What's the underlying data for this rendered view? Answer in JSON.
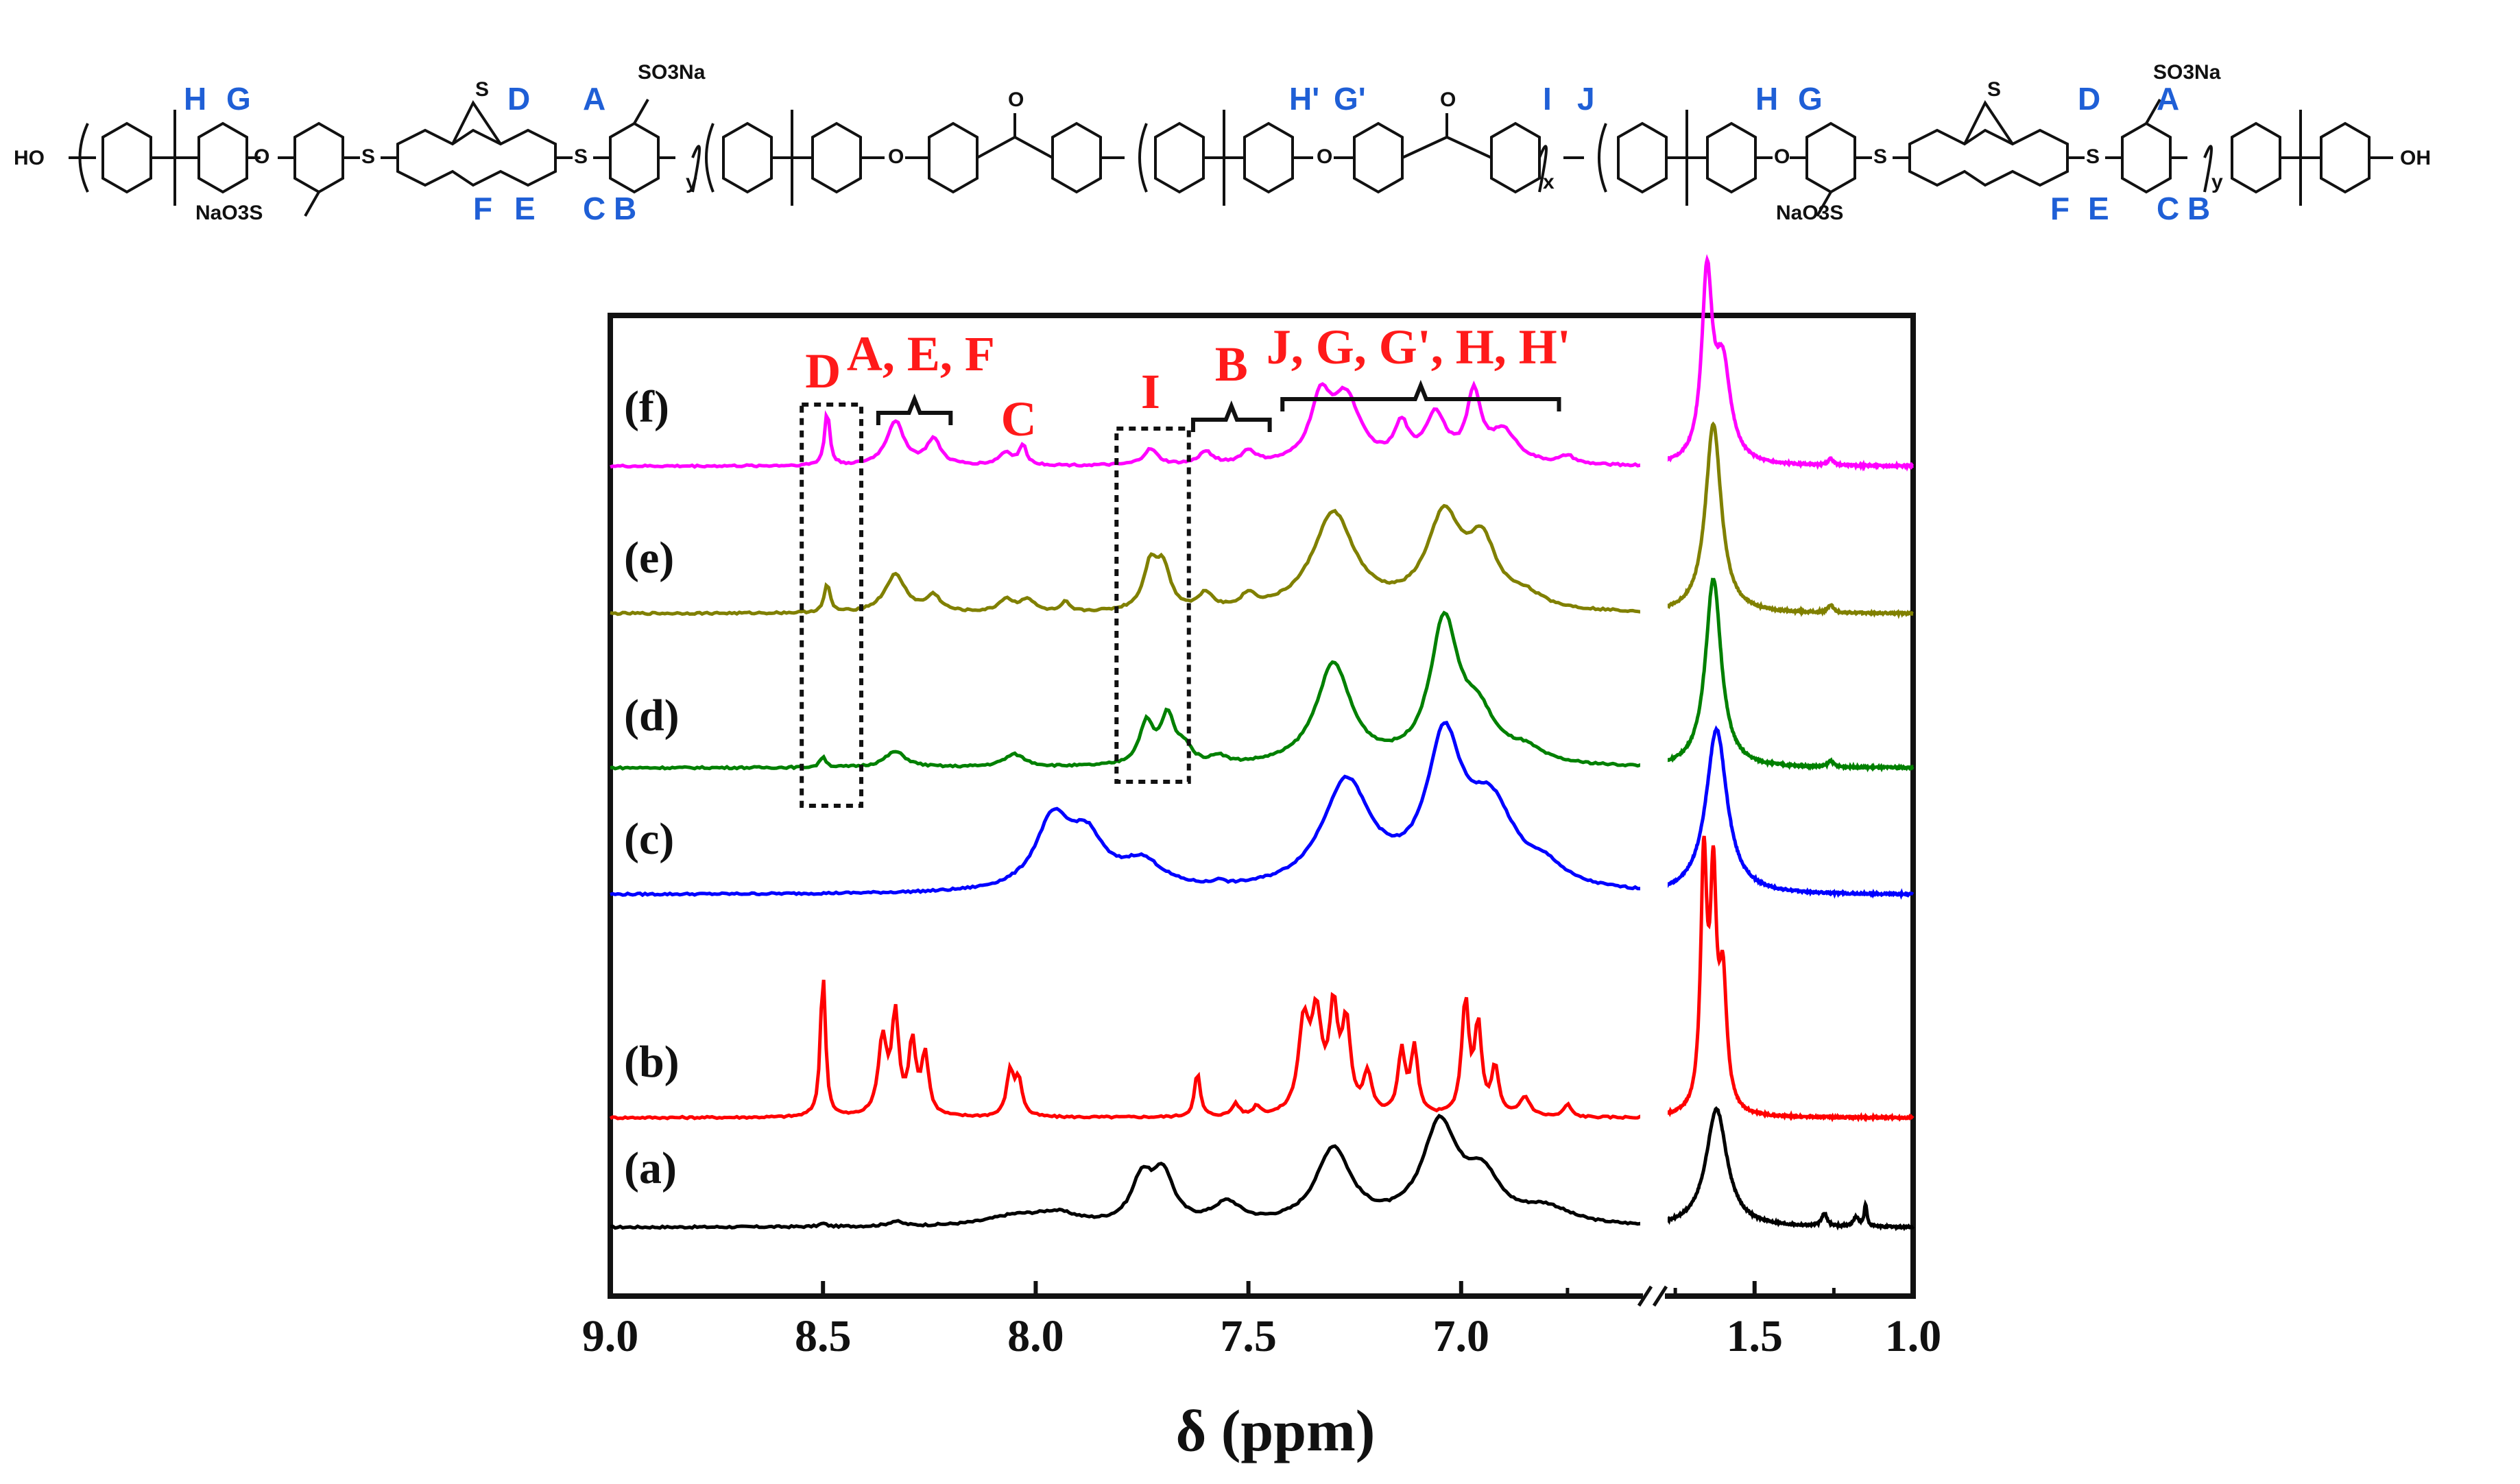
{
  "structure": {
    "end_left": "HO",
    "end_right": "OH",
    "sulfonate": "SO3Na",
    "sulfonate_left": "NaO3S",
    "repeat_y": "y",
    "repeat_x": "x",
    "labels": {
      "H": "H",
      "G": "G",
      "D": "D",
      "A": "A",
      "F": "F",
      "E": "E",
      "C": "C",
      "B": "B",
      "Hp": "H'",
      "Gp": "G'",
      "I": "I",
      "J": "J"
    }
  },
  "colors": {
    "a": "#000000",
    "b": "#ff0000",
    "c": "#0000ff",
    "d": "#008000",
    "e": "#808000",
    "f": "#ff00ff",
    "annotation": "#ff1a1a",
    "structure_label": "#1f5fd6"
  },
  "chart_data": {
    "type": "line",
    "xlabel": "δ (ppm)",
    "x_axis": {
      "reversed": true,
      "broken": true,
      "left_segment_range": [
        9.0,
        6.55
      ],
      "right_segment_range": [
        1.8,
        1.0
      ],
      "tick_labels": [
        "9.0",
        "8.5",
        "8.0",
        "7.5",
        "7.0",
        "1.5",
        "1.0"
      ]
    },
    "series": [
      {
        "name": "(a)",
        "color": "#000000",
        "peaks": [
          [
            8.5,
            0.02,
            0.01
          ],
          [
            8.33,
            0.03,
            0.02
          ],
          [
            8.05,
            0.06,
            0.08
          ],
          [
            7.95,
            0.07,
            0.06
          ],
          [
            7.75,
            0.28,
            0.03
          ],
          [
            7.7,
            0.3,
            0.03
          ],
          [
            7.55,
            0.13,
            0.04
          ],
          [
            7.3,
            0.48,
            0.05
          ],
          [
            7.05,
            0.62,
            0.05
          ],
          [
            6.95,
            0.28,
            0.05
          ],
          [
            6.8,
            0.1,
            0.07
          ]
        ],
        "aliphatic": [
          [
            1.62,
            0.75,
            0.04
          ],
          [
            1.28,
            0.08,
            0.01
          ],
          [
            1.18,
            0.06,
            0.01
          ],
          [
            1.15,
            0.14,
            0.005
          ]
        ]
      },
      {
        "name": "(b)",
        "color": "#ff0000",
        "peaks": [
          [
            8.5,
            0.92,
            0.007
          ],
          [
            8.36,
            0.48,
            0.012
          ],
          [
            8.33,
            0.62,
            0.01
          ],
          [
            8.29,
            0.45,
            0.01
          ],
          [
            8.26,
            0.38,
            0.01
          ],
          [
            8.06,
            0.28,
            0.01
          ],
          [
            8.04,
            0.22,
            0.01
          ],
          [
            7.62,
            0.28,
            0.008
          ],
          [
            7.53,
            0.08,
            0.01
          ],
          [
            7.48,
            0.06,
            0.01
          ],
          [
            7.37,
            0.55,
            0.015
          ],
          [
            7.34,
            0.58,
            0.015
          ],
          [
            7.3,
            0.62,
            0.012
          ],
          [
            7.27,
            0.55,
            0.012
          ],
          [
            7.22,
            0.25,
            0.012
          ],
          [
            7.14,
            0.4,
            0.01
          ],
          [
            7.11,
            0.42,
            0.01
          ],
          [
            6.99,
            0.72,
            0.01
          ],
          [
            6.96,
            0.55,
            0.01
          ],
          [
            6.92,
            0.3,
            0.01
          ],
          [
            6.85,
            0.12,
            0.015
          ],
          [
            6.75,
            0.08,
            0.01
          ]
        ],
        "aliphatic": [
          [
            1.66,
            1.55,
            0.012
          ],
          [
            1.63,
            1.35,
            0.012
          ],
          [
            1.6,
            0.8,
            0.015
          ]
        ]
      },
      {
        "name": "(c)",
        "color": "#0000ff",
        "peaks": [
          [
            7.96,
            0.43,
            0.05
          ],
          [
            7.88,
            0.3,
            0.05
          ],
          [
            7.75,
            0.17,
            0.06
          ],
          [
            7.57,
            0.03,
            0.01
          ],
          [
            7.27,
            0.68,
            0.07
          ],
          [
            7.04,
            0.88,
            0.05
          ],
          [
            6.93,
            0.5,
            0.07
          ],
          [
            6.8,
            0.1,
            0.05
          ]
        ],
        "aliphatic": [
          [
            1.62,
            1.05,
            0.04
          ]
        ]
      },
      {
        "name": "(d)",
        "color": "#008000",
        "peaks": [
          [
            8.5,
            0.07,
            0.008
          ],
          [
            8.33,
            0.1,
            0.03
          ],
          [
            8.05,
            0.08,
            0.03
          ],
          [
            7.74,
            0.26,
            0.02
          ],
          [
            7.69,
            0.3,
            0.02
          ],
          [
            7.65,
            0.1,
            0.02
          ],
          [
            7.57,
            0.05,
            0.02
          ],
          [
            7.3,
            0.64,
            0.05
          ],
          [
            7.04,
            0.88,
            0.04
          ],
          [
            6.96,
            0.28,
            0.05
          ],
          [
            6.85,
            0.08,
            0.05
          ]
        ],
        "aliphatic": [
          [
            1.63,
            1.2,
            0.03
          ],
          [
            1.26,
            0.04,
            0.01
          ]
        ]
      },
      {
        "name": "(e)",
        "color": "#808000",
        "peaks": [
          [
            8.49,
            0.18,
            0.008
          ],
          [
            8.33,
            0.24,
            0.03
          ],
          [
            8.24,
            0.1,
            0.02
          ],
          [
            8.07,
            0.08,
            0.02
          ],
          [
            8.02,
            0.08,
            0.02
          ],
          [
            7.93,
            0.06,
            0.01
          ],
          [
            7.73,
            0.28,
            0.02
          ],
          [
            7.7,
            0.25,
            0.02
          ],
          [
            7.6,
            0.1,
            0.02
          ],
          [
            7.5,
            0.08,
            0.02
          ],
          [
            7.3,
            0.62,
            0.06
          ],
          [
            7.04,
            0.58,
            0.05
          ],
          [
            6.95,
            0.38,
            0.04
          ],
          [
            6.85,
            0.08,
            0.05
          ]
        ],
        "aliphatic": [
          [
            1.63,
            1.2,
            0.03
          ],
          [
            1.26,
            0.05,
            0.01
          ]
        ]
      },
      {
        "name": "(f)",
        "color": "#ff00ff",
        "peaks": [
          [
            8.49,
            0.35,
            0.007
          ],
          [
            8.33,
            0.28,
            0.025
          ],
          [
            8.24,
            0.16,
            0.02
          ],
          [
            8.07,
            0.08,
            0.02
          ],
          [
            8.03,
            0.12,
            0.01
          ],
          [
            7.73,
            0.1,
            0.02
          ],
          [
            7.6,
            0.08,
            0.02
          ],
          [
            7.5,
            0.08,
            0.02
          ],
          [
            7.33,
            0.38,
            0.03
          ],
          [
            7.27,
            0.4,
            0.04
          ],
          [
            7.14,
            0.22,
            0.02
          ],
          [
            7.06,
            0.3,
            0.03
          ],
          [
            6.97,
            0.42,
            0.02
          ],
          [
            6.9,
            0.2,
            0.04
          ],
          [
            6.75,
            0.05,
            0.02
          ]
        ],
        "aliphatic": [
          [
            1.65,
            1.15,
            0.02
          ],
          [
            1.6,
            0.6,
            0.03
          ],
          [
            1.26,
            0.04,
            0.01
          ]
        ]
      }
    ],
    "annotations": [
      {
        "text": "D",
        "ppm": 8.5
      },
      {
        "text": "A, E, F",
        "ppm": 8.28
      },
      {
        "text": "C",
        "ppm": 8.03
      },
      {
        "text": "I",
        "ppm": 7.73
      },
      {
        "text": "B",
        "ppm": 7.54
      },
      {
        "text": "J, G, G', H, H'",
        "ppm": 7.1
      }
    ]
  }
}
